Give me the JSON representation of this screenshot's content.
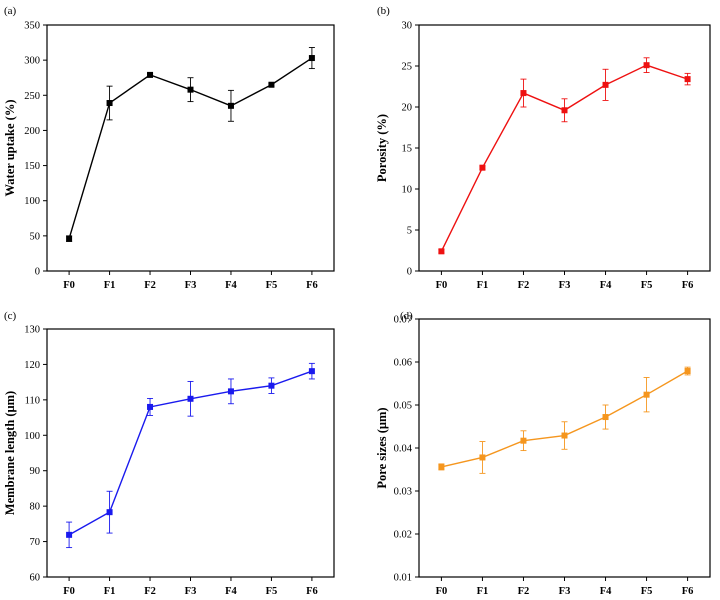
{
  "chart_data": [
    {
      "panel": "(a)",
      "type": "line",
      "categories": [
        "F0",
        "F1",
        "F2",
        "F3",
        "F4",
        "F5",
        "F6"
      ],
      "values": [
        46,
        239,
        279,
        258,
        235,
        265,
        303
      ],
      "errors": [
        4,
        24,
        2,
        17,
        22,
        2,
        15
      ],
      "ylabel": "Water uptake (%)",
      "xlabel": "",
      "ylim": [
        0,
        350
      ],
      "yticks": [
        0,
        50,
        100,
        150,
        200,
        250,
        300,
        350
      ],
      "ytick_labels": [
        "0",
        "50",
        "100",
        "150",
        "200",
        "250",
        "300",
        "350"
      ],
      "color": "#000000",
      "grid": false
    },
    {
      "panel": "(b)",
      "type": "line",
      "categories": [
        "F0",
        "F1",
        "F2",
        "F3",
        "F4",
        "F5",
        "F6"
      ],
      "values": [
        2.4,
        12.6,
        21.7,
        19.6,
        22.7,
        25.1,
        23.4
      ],
      "errors": [
        0.2,
        0.2,
        1.7,
        1.4,
        1.9,
        0.9,
        0.7
      ],
      "ylabel": "Porosity (%)",
      "xlabel": "",
      "ylim": [
        0,
        30
      ],
      "yticks": [
        0,
        5,
        10,
        15,
        20,
        25,
        30
      ],
      "ytick_labels": [
        "0",
        "5",
        "10",
        "15",
        "20",
        "25",
        "30"
      ],
      "color": "#ee1111",
      "grid": false
    },
    {
      "panel": "(c)",
      "type": "line",
      "categories": [
        "F0",
        "F1",
        "F2",
        "F3",
        "F4",
        "F5",
        "F6"
      ],
      "values": [
        71.9,
        78.3,
        108.0,
        110.3,
        112.4,
        114.0,
        118.1
      ],
      "errors": [
        3.6,
        5.9,
        2.4,
        4.9,
        3.5,
        2.2,
        2.2
      ],
      "ylabel": "Membrane length (μm)",
      "xlabel": "",
      "ylim": [
        60,
        130
      ],
      "yticks": [
        60,
        70,
        80,
        90,
        100,
        110,
        120,
        130
      ],
      "ytick_labels": [
        "60",
        "70",
        "80",
        "90",
        "100",
        "110",
        "120",
        "130"
      ],
      "color": "#1a1aee",
      "grid": false
    },
    {
      "panel": "(d)",
      "type": "line",
      "categories": [
        "F0",
        "F1",
        "F2",
        "F3",
        "F4",
        "F5",
        "F6"
      ],
      "values": [
        0.0356,
        0.0378,
        0.0417,
        0.0429,
        0.0472,
        0.0524,
        0.0579
      ],
      "errors": [
        0.0007,
        0.0037,
        0.0023,
        0.0032,
        0.0028,
        0.004,
        0.0009
      ],
      "ylabel": "Pore sizes (μm)",
      "xlabel": "",
      "ylim": [
        0.01,
        0.07
      ],
      "yticks": [
        0.01,
        0.02,
        0.03,
        0.04,
        0.05,
        0.06,
        0.07
      ],
      "ytick_labels": [
        "0.01",
        "0.02",
        "0.03",
        "0.04",
        "0.05",
        "0.06",
        "0.07"
      ],
      "color": "#f5961e",
      "grid": false
    }
  ]
}
